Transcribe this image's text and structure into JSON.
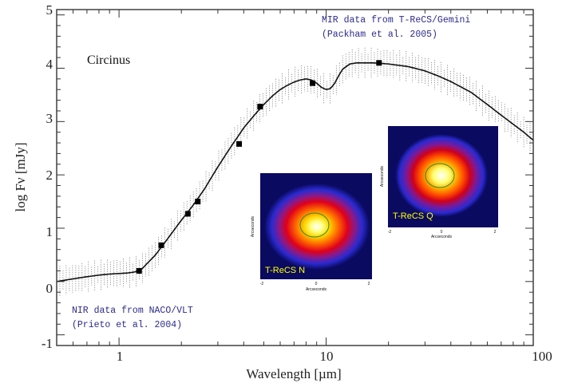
{
  "chart_data": {
    "type": "line",
    "x_scale": "log",
    "xlim": [
      0.5,
      100
    ],
    "ylim": [
      -1.2,
      5.1
    ],
    "xlabel": "Wavelength [µm]",
    "ylabel": "log Fν [mJy]",
    "x_tick_labels": [
      "1",
      "10",
      "100"
    ],
    "y_tick_labels": [
      "-1",
      "0",
      "1",
      "2",
      "3",
      "4",
      "5"
    ],
    "panel_label": "Circinus",
    "model_curve": {
      "x": [
        0.5,
        0.6,
        0.7,
        0.8,
        0.9,
        1.0,
        1.1,
        1.2,
        1.3,
        1.5,
        1.7,
        2.0,
        2.3,
        2.6,
        3.0,
        3.5,
        4.0,
        4.5,
        5.0,
        5.5,
        6.0,
        6.5,
        7.0,
        7.5,
        8.0,
        8.5,
        9.0,
        9.5,
        10.0,
        10.5,
        11.0,
        11.5,
        12.0,
        13.0,
        14.0,
        15.0,
        17.0,
        20.0,
        25.0,
        30.0,
        35.0,
        40.0,
        50.0,
        60.0,
        70.0,
        80.0,
        90.0,
        100.0
      ],
      "y": [
        0.0,
        0.05,
        0.09,
        0.12,
        0.14,
        0.15,
        0.16,
        0.18,
        0.25,
        0.5,
        0.78,
        1.15,
        1.45,
        1.75,
        2.15,
        2.55,
        2.88,
        3.12,
        3.32,
        3.48,
        3.6,
        3.68,
        3.74,
        3.78,
        3.8,
        3.78,
        3.72,
        3.64,
        3.6,
        3.62,
        3.72,
        3.86,
        3.98,
        4.08,
        4.1,
        4.1,
        4.1,
        4.08,
        4.03,
        3.95,
        3.85,
        3.75,
        3.55,
        3.32,
        3.12,
        2.95,
        2.8,
        2.65
      ]
    },
    "model_spread": 0.22,
    "observed_points": {
      "x": [
        1.25,
        1.6,
        2.15,
        2.4,
        3.8,
        4.8,
        8.6,
        18.0
      ],
      "y": [
        0.2,
        0.68,
        1.27,
        1.5,
        2.58,
        3.28,
        3.72,
        4.1
      ]
    }
  },
  "annotations": {
    "nir_top_line1": "MIR data from T-ReCS/Gemini",
    "nir_top_line2": "(Packham et al. 2005)",
    "nir_bottom_line1": "NIR data from NACO/VLT",
    "nir_bottom_line2": "(Prieto et al. 2004)"
  },
  "insets": {
    "n_band": {
      "title": "T-ReCS N",
      "xlabel": "Arcseconds",
      "ylabel": "Arcseconds",
      "tick_labels": [
        "-2",
        "0",
        "2"
      ]
    },
    "q_band": {
      "title": "T-ReCS Q",
      "xlabel": "Arcseconds",
      "ylabel": "Arcseconds",
      "tick_labels": [
        "-2",
        "0",
        "2"
      ]
    }
  },
  "colors": {
    "curve": "#111111",
    "spread": "#555555",
    "note_text": "#2b2b8c",
    "inset_title": "#ffff00"
  }
}
